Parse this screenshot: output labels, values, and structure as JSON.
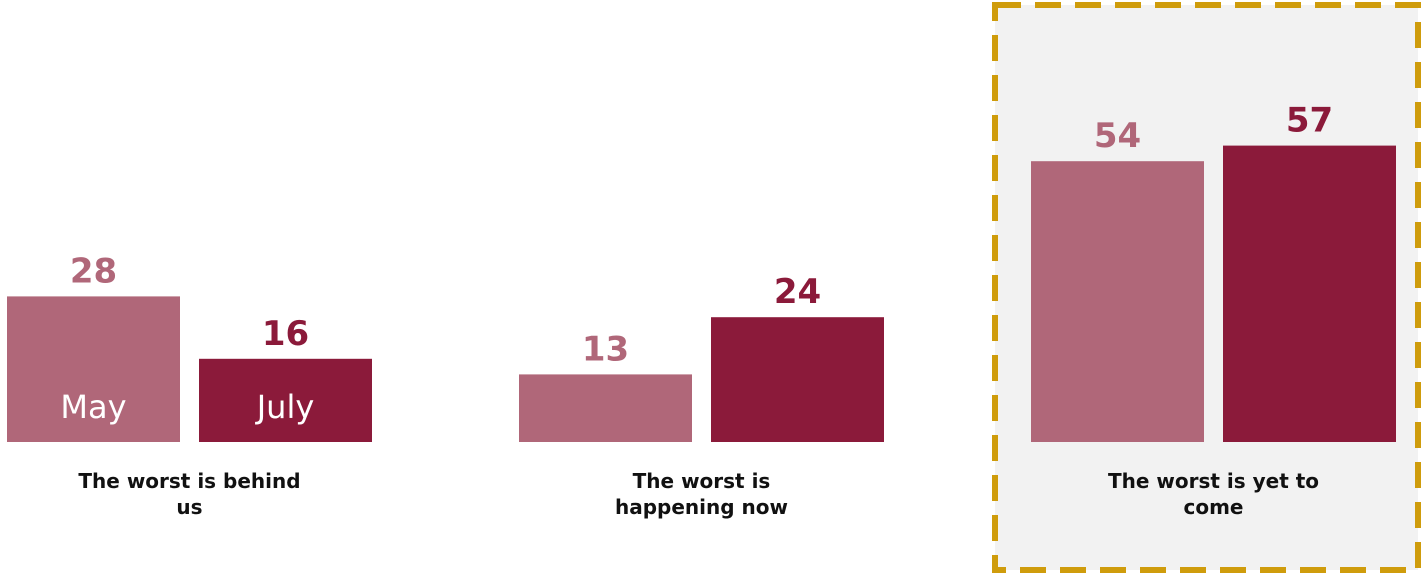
{
  "chart_data": {
    "type": "bar",
    "categories": [
      "The worst is behind us",
      "The worst is happening now",
      "The worst is yet to come"
    ],
    "series": [
      {
        "name": "May",
        "values": [
          28,
          13,
          54
        ],
        "color": "#b06779",
        "label_color": "#b06779"
      },
      {
        "name": "July",
        "values": [
          16,
          24,
          57
        ],
        "color": "#8b1a3a",
        "label_color": "#8b1a3a"
      }
    ],
    "legend_placement": "inside-first-group-bars",
    "highlight_category": "The worst is yet to come",
    "highlight_style": {
      "border_color": "#cf9c0c",
      "fill_color": "#f2f2f2",
      "dashed": true
    },
    "ylim": [
      0,
      70
    ],
    "grid": false,
    "title": "",
    "xlabel": "",
    "ylabel": ""
  }
}
